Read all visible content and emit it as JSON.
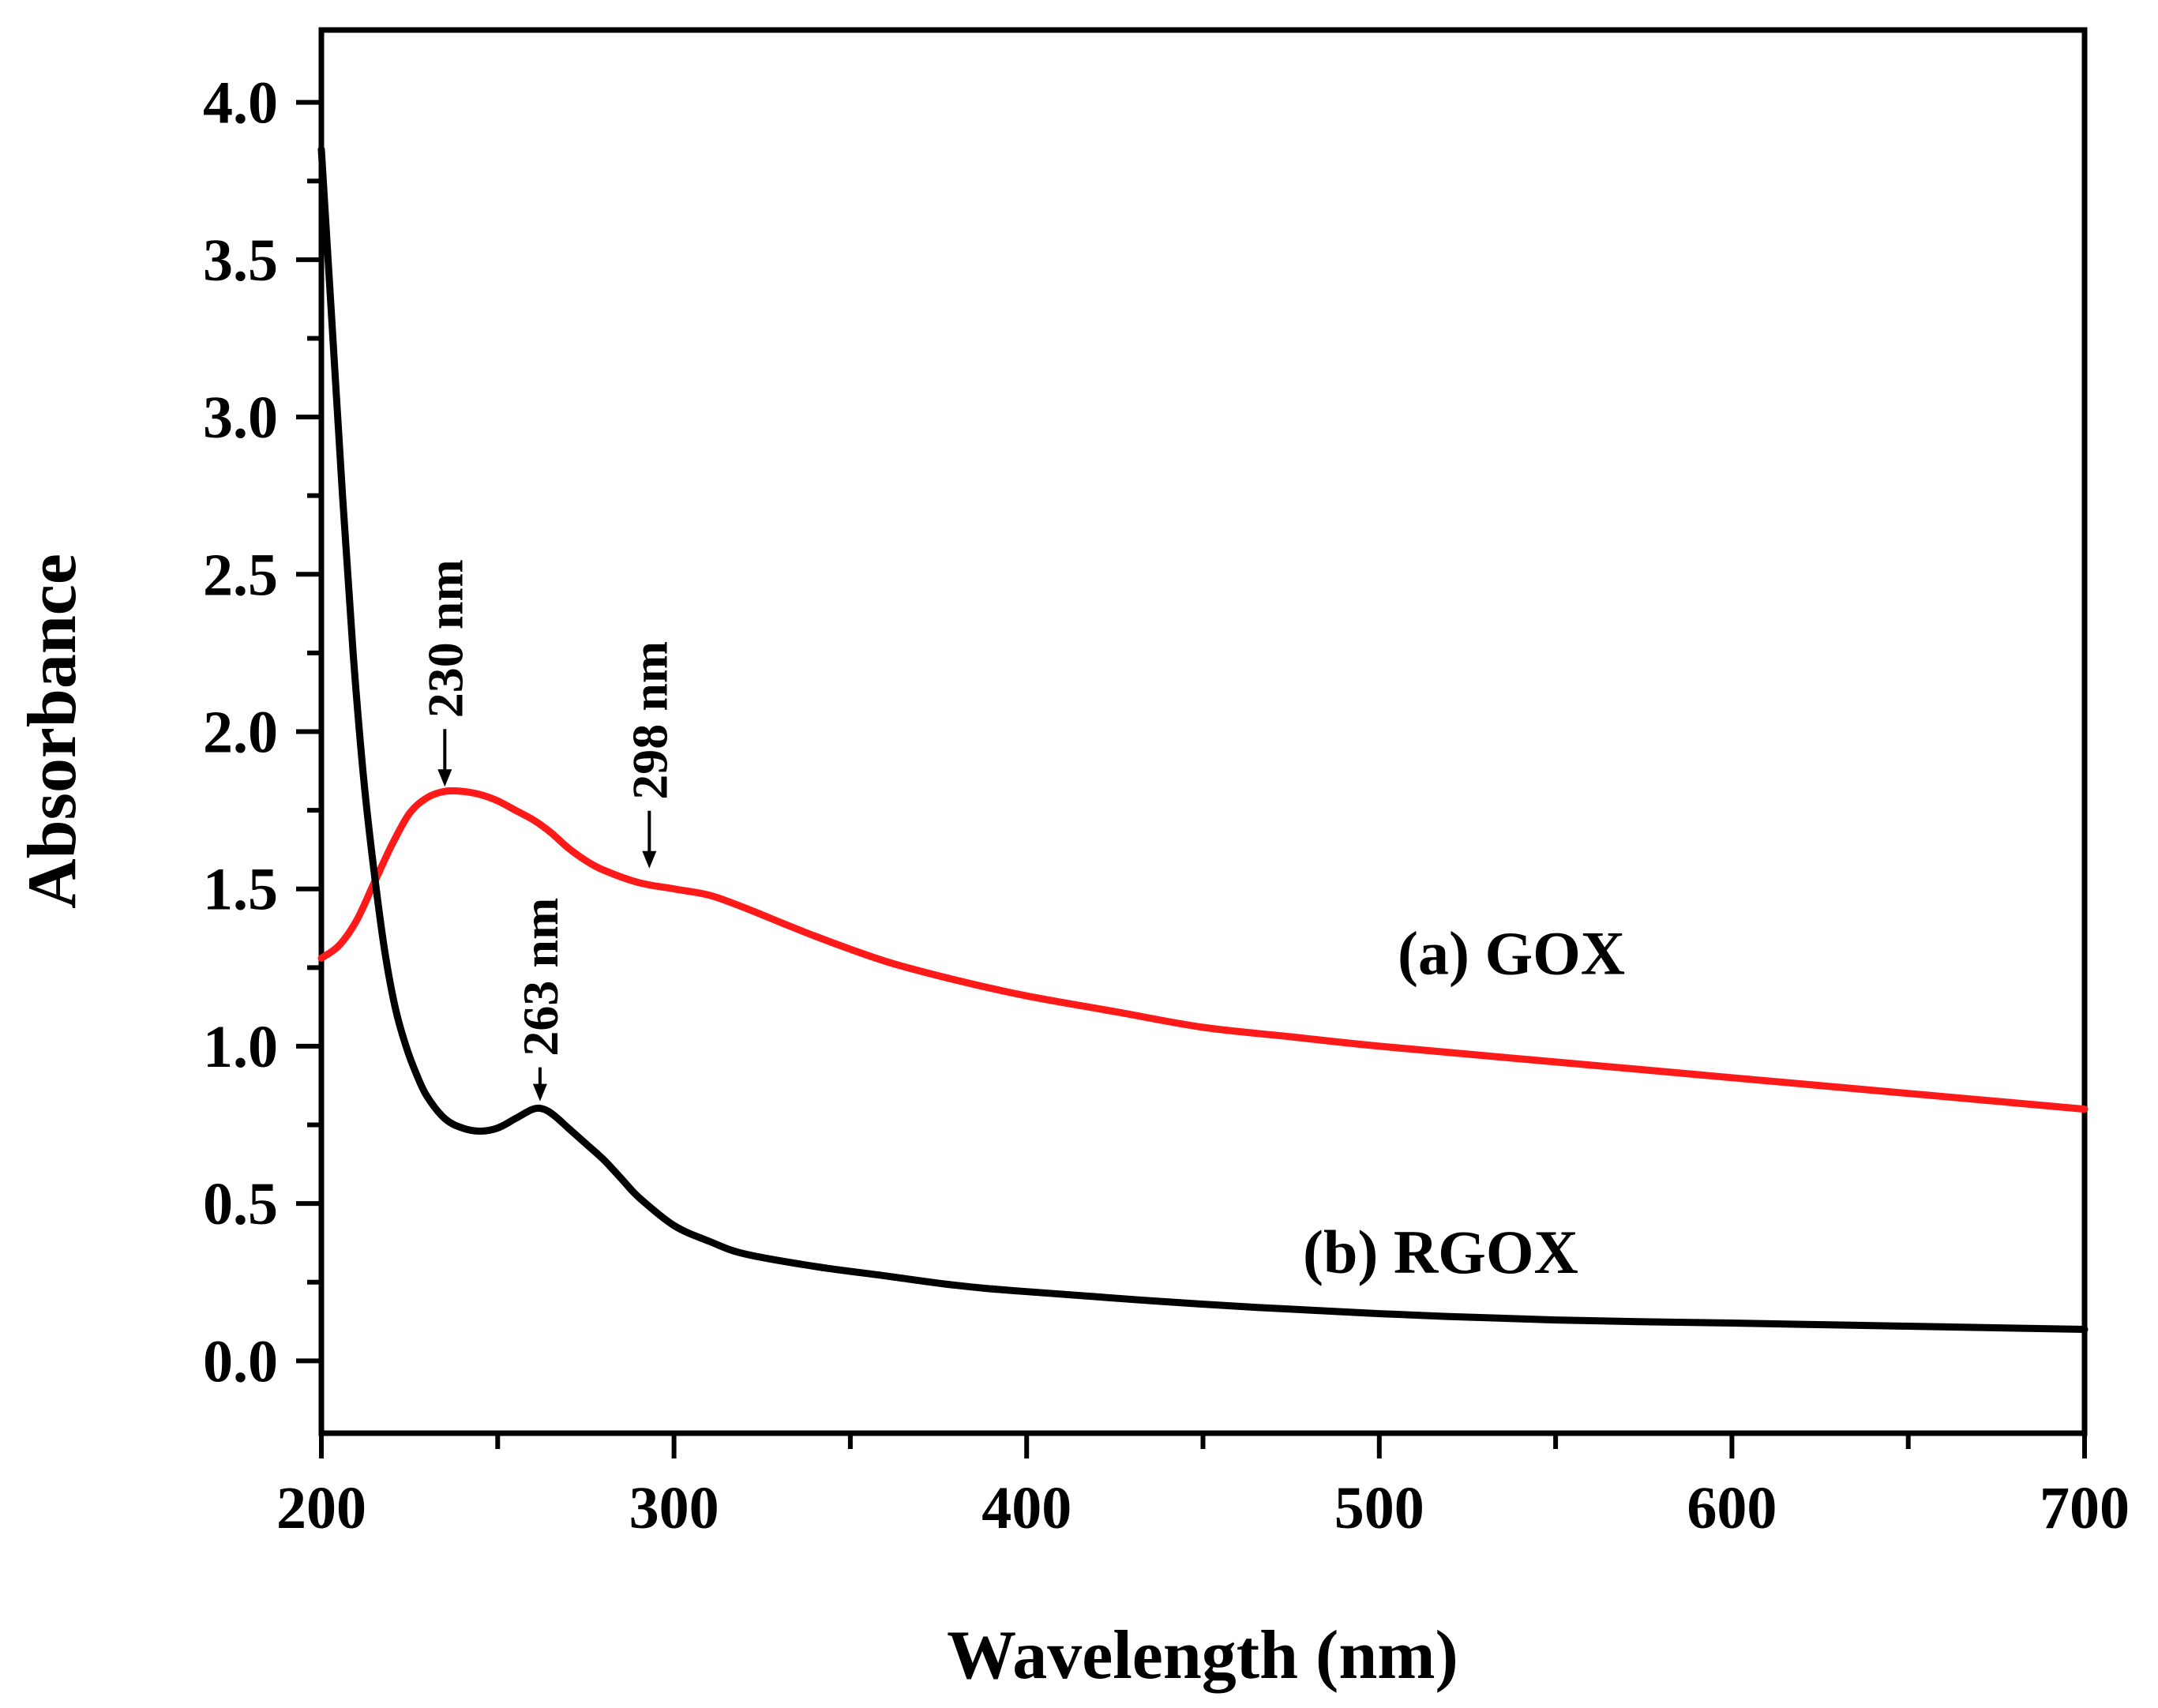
{
  "chart_data": {
    "type": "line",
    "title": "",
    "xlabel": "Wavelength (nm)",
    "ylabel": "Absorbance",
    "xlim": [
      200,
      700
    ],
    "ylim": [
      -0.23,
      4.23
    ],
    "x_ticks": [
      200,
      300,
      400,
      500,
      600,
      700
    ],
    "x_tick_labels": [
      "200",
      "300",
      "400",
      "500",
      "600",
      "700"
    ],
    "x_minor_ticks": [
      250,
      350,
      450,
      550,
      650
    ],
    "y_ticks": [
      0.0,
      0.5,
      1.0,
      1.5,
      2.0,
      2.5,
      3.0,
      3.5,
      4.0
    ],
    "y_tick_labels": [
      "0.0",
      "0.5",
      "1.0",
      "1.5",
      "2.0",
      "2.5",
      "3.0",
      "3.5",
      "4.0"
    ],
    "grid": false,
    "series": [
      {
        "name": "GOX",
        "label": "(a) GOX",
        "color": "#ff1a1a",
        "x": [
          200,
          205,
          210,
          215,
          220,
          225,
          230,
          235,
          240,
          245,
          250,
          255,
          260,
          265,
          270,
          275,
          280,
          290,
          300,
          310,
          320,
          340,
          360,
          380,
          400,
          425,
          450,
          475,
          500,
          550,
          600,
          650,
          700
        ],
        "y": [
          1.28,
          1.32,
          1.4,
          1.52,
          1.64,
          1.74,
          1.79,
          1.81,
          1.81,
          1.8,
          1.78,
          1.75,
          1.72,
          1.68,
          1.63,
          1.59,
          1.56,
          1.52,
          1.5,
          1.48,
          1.44,
          1.35,
          1.27,
          1.21,
          1.16,
          1.11,
          1.06,
          1.03,
          1.0,
          0.95,
          0.9,
          0.85,
          0.8
        ]
      },
      {
        "name": "RGOX",
        "label": "(b) RGOX",
        "color": "#000000",
        "x": [
          200,
          203,
          206,
          209,
          212,
          215,
          218,
          221,
          224,
          227,
          230,
          235,
          240,
          245,
          250,
          255,
          260,
          263,
          266,
          270,
          275,
          280,
          285,
          290,
          300,
          310,
          320,
          340,
          360,
          380,
          400,
          450,
          500,
          550,
          600,
          650,
          700
        ],
        "y": [
          3.85,
          3.3,
          2.75,
          2.25,
          1.85,
          1.55,
          1.3,
          1.12,
          1.0,
          0.91,
          0.84,
          0.77,
          0.74,
          0.73,
          0.74,
          0.77,
          0.8,
          0.8,
          0.78,
          0.74,
          0.69,
          0.64,
          0.58,
          0.52,
          0.43,
          0.38,
          0.34,
          0.3,
          0.27,
          0.24,
          0.22,
          0.18,
          0.15,
          0.13,
          0.12,
          0.11,
          0.1
        ]
      }
    ],
    "annotations": [
      {
        "text": "230 nm",
        "arrow_x": 235,
        "arrow_y": 1.82,
        "series": "GOX"
      },
      {
        "text": "298 nm",
        "arrow_x": 293,
        "arrow_y": 1.56,
        "series": "GOX"
      },
      {
        "text": "263 nm",
        "arrow_x": 262,
        "arrow_y": 0.82,
        "series": "RGOX"
      }
    ],
    "series_label_positions": {
      "GOX": [
        1120,
        1.3
      ],
      "RGOX": [
        1090,
        0.35
      ]
    }
  }
}
